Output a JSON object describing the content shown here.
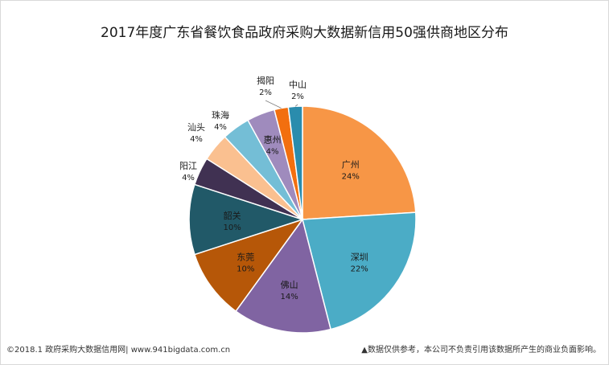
{
  "chart_data": {
    "type": "pie",
    "title": "2017年度广东省餐饮食品政府采购大数据新信用50强供商地区分布",
    "slices": [
      {
        "label": "广州",
        "value": 24,
        "pct_label": "24%",
        "color": "#f79646",
        "label_place": "inside"
      },
      {
        "label": "深圳",
        "value": 22,
        "pct_label": "22%",
        "color": "#4bacc6",
        "label_place": "inside"
      },
      {
        "label": "佛山",
        "value": 14,
        "pct_label": "14%",
        "color": "#8064a2",
        "label_place": "inside"
      },
      {
        "label": "东莞",
        "value": 10,
        "pct_label": "10%",
        "color": "#b65708",
        "label_place": "inside"
      },
      {
        "label": "韶关",
        "value": 10,
        "pct_label": "10%",
        "color": "#215968",
        "label_place": "inside"
      },
      {
        "label": "阳江",
        "value": 4,
        "pct_label": "4%",
        "color": "#403152",
        "label_place": "outside"
      },
      {
        "label": "汕头",
        "value": 4,
        "pct_label": "4%",
        "color": "#fac090",
        "label_place": "outside"
      },
      {
        "label": "珠海",
        "value": 4,
        "pct_label": "4%",
        "color": "#74bed6",
        "label_place": "outside"
      },
      {
        "label": "惠州",
        "value": 4,
        "pct_label": "4%",
        "color": "#9f8bbd",
        "label_place": "inside"
      },
      {
        "label": "揭阳",
        "value": 2,
        "pct_label": "2%",
        "color": "#f26f0f",
        "label_place": "outside"
      },
      {
        "label": "中山",
        "value": 2,
        "pct_label": "2%",
        "color": "#2a8cad",
        "label_place": "outside"
      }
    ]
  },
  "footer": {
    "left": "©2018.1 政府采购大数据信用网| www.941bigdata.com.cn",
    "right": "▲数据仅供参考，本公司不负责引用该数据所产生的商业负面影响。"
  }
}
